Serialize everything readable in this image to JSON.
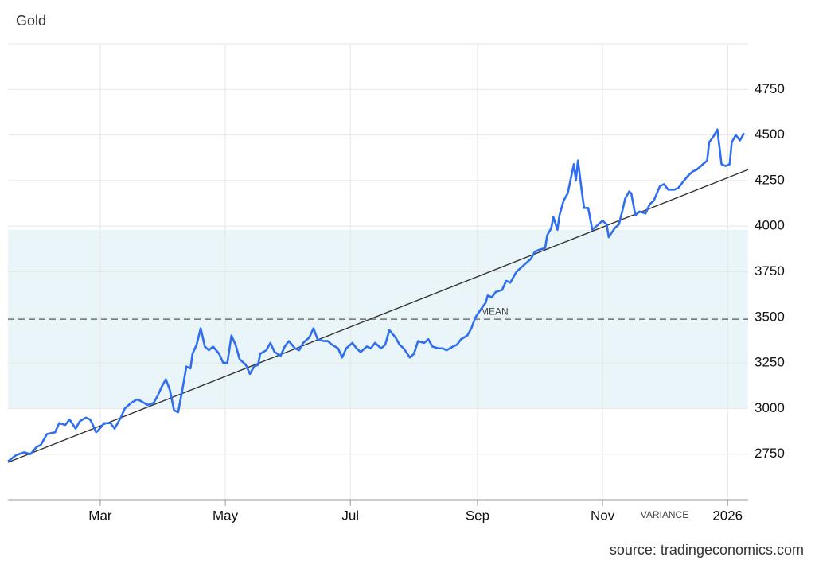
{
  "chart_data": {
    "type": "line",
    "title": "Gold",
    "source": "source: tradingeconomics.com",
    "mean_label": "MEAN",
    "variance_label": "VARIANCE",
    "xlim": [
      14,
      375
    ],
    "xticks": [
      {
        "value": 59,
        "label": "Mar"
      },
      {
        "value": 120,
        "label": "May"
      },
      {
        "value": 181,
        "label": "Jul"
      },
      {
        "value": 243,
        "label": "Sep"
      },
      {
        "value": 304,
        "label": "Nov"
      },
      {
        "value": 365,
        "label": "2026"
      }
    ],
    "ylim": [
      2500,
      5000
    ],
    "yticks": [
      2750,
      3000,
      3250,
      3500,
      3750,
      4000,
      4250,
      4500,
      4750
    ],
    "grid": true,
    "mean": 3490,
    "variance_band": [
      3000,
      3980
    ],
    "trend": {
      "color": "#333333",
      "x": [
        14,
        375
      ],
      "values": [
        2705,
        4310
      ]
    },
    "x": [
      14,
      18,
      22,
      25,
      28,
      30,
      33,
      37,
      39,
      42,
      44,
      47,
      49,
      52,
      54,
      55,
      57,
      58,
      61,
      64,
      66,
      69,
      71,
      74,
      77,
      79,
      82,
      85,
      87,
      89,
      91,
      93,
      95,
      97,
      99,
      101,
      103,
      104,
      106,
      108,
      110,
      112,
      114,
      117,
      119,
      121,
      123,
      125,
      127,
      130,
      132,
      134,
      136,
      137,
      140,
      142,
      144,
      147,
      149,
      151,
      154,
      156,
      158,
      161,
      163,
      165,
      168,
      170,
      172,
      175,
      177,
      179,
      182,
      184,
      186,
      189,
      191,
      193,
      196,
      198,
      200,
      203,
      205,
      207,
      210,
      212,
      214,
      217,
      219,
      221,
      224,
      226,
      228,
      231,
      233,
      235,
      238,
      240,
      242,
      245,
      247,
      248,
      250,
      252,
      255,
      257,
      259,
      262,
      264,
      266,
      269,
      271,
      273,
      276,
      277,
      279,
      280,
      282,
      283,
      285,
      287,
      290,
      291,
      292,
      294,
      295,
      297,
      299,
      301,
      304,
      306,
      307,
      310,
      312,
      314,
      315,
      317,
      318,
      320,
      322,
      325,
      327,
      329,
      332,
      334,
      336,
      339,
      341,
      343,
      346,
      348,
      350,
      353,
      355,
      356,
      358,
      360,
      362,
      364,
      366,
      367,
      369,
      371,
      373
    ],
    "series": [
      {
        "name": "Gold",
        "color": "#2f6ef0",
        "values": [
          2710,
          2745,
          2760,
          2750,
          2790,
          2800,
          2860,
          2870,
          2920,
          2910,
          2940,
          2890,
          2930,
          2950,
          2940,
          2920,
          2870,
          2880,
          2920,
          2920,
          2890,
          2950,
          3000,
          3030,
          3050,
          3040,
          3020,
          3030,
          3070,
          3120,
          3160,
          3100,
          2990,
          2980,
          3100,
          3230,
          3220,
          3300,
          3350,
          3440,
          3340,
          3320,
          3340,
          3300,
          3250,
          3250,
          3400,
          3350,
          3270,
          3240,
          3190,
          3230,
          3240,
          3300,
          3320,
          3360,
          3310,
          3290,
          3340,
          3370,
          3330,
          3320,
          3360,
          3390,
          3440,
          3380,
          3370,
          3370,
          3350,
          3330,
          3280,
          3330,
          3360,
          3330,
          3310,
          3340,
          3330,
          3360,
          3330,
          3350,
          3430,
          3390,
          3350,
          3330,
          3280,
          3300,
          3370,
          3360,
          3380,
          3340,
          3330,
          3330,
          3320,
          3340,
          3350,
          3380,
          3400,
          3440,
          3500,
          3550,
          3580,
          3620,
          3610,
          3640,
          3650,
          3700,
          3690,
          3750,
          3770,
          3790,
          3820,
          3860,
          3870,
          3880,
          3950,
          3990,
          4050,
          3980,
          4060,
          4140,
          4180,
          4340,
          4250,
          4360,
          4180,
          4100,
          4100,
          3980,
          4000,
          4030,
          4010,
          3940,
          3990,
          4010,
          4100,
          4150,
          4190,
          4180,
          4060,
          4080,
          4070,
          4120,
          4140,
          4220,
          4230,
          4200,
          4200,
          4210,
          4240,
          4280,
          4300,
          4310,
          4340,
          4360,
          4460,
          4490,
          4530,
          4340,
          4330,
          4340,
          4460,
          4500,
          4470,
          4510
        ]
      }
    ]
  }
}
